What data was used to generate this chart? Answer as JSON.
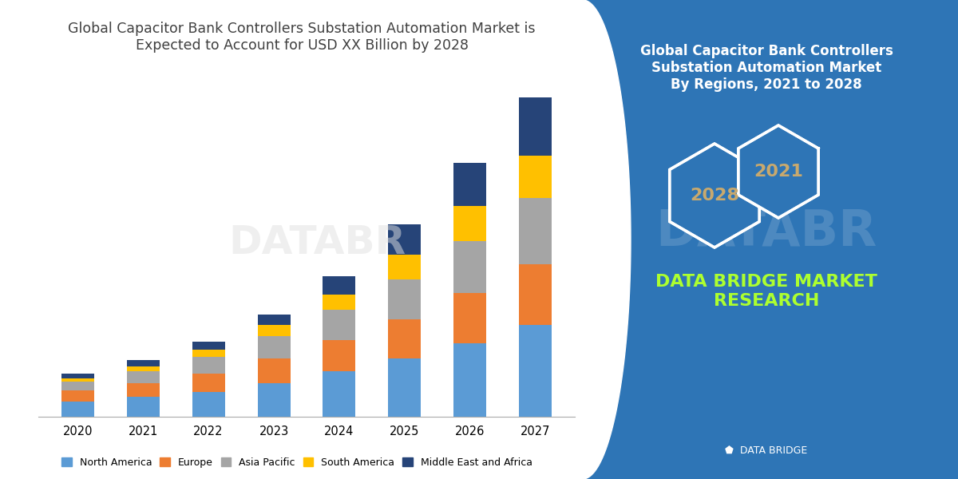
{
  "title_left": "Global Capacitor Bank Controllers Substation Automation Market is\nExpected to Account for USD XX Billion by 2028",
  "title_right": "Global Capacitor Bank Controllers\nSubstation Automation Market\nBy Regions, 2021 to 2028",
  "brand_text": "DATA BRIDGE MARKET\nRESEARCH",
  "years": [
    "2020",
    "2021",
    "2022",
    "2023",
    "2024",
    "2025",
    "2026",
    "2027"
  ],
  "regions": [
    "North America",
    "Europe",
    "Asia Pacific",
    "South America",
    "Middle East and Africa"
  ],
  "colors": [
    "#5B9BD5",
    "#ED7D31",
    "#A5A5A5",
    "#FFC000",
    "#264478"
  ],
  "data": {
    "North America": [
      1.0,
      1.3,
      1.6,
      2.2,
      3.0,
      3.8,
      4.8,
      6.0
    ],
    "Europe": [
      0.7,
      0.9,
      1.2,
      1.6,
      2.0,
      2.6,
      3.3,
      4.0
    ],
    "Asia Pacific": [
      0.6,
      0.8,
      1.1,
      1.5,
      2.0,
      2.6,
      3.4,
      4.3
    ],
    "South America": [
      0.2,
      0.3,
      0.5,
      0.7,
      1.0,
      1.6,
      2.3,
      2.8
    ],
    "Middle East and Africa": [
      0.3,
      0.4,
      0.5,
      0.7,
      1.2,
      2.0,
      2.8,
      3.8
    ]
  },
  "bg_color_left": "#FFFFFF",
  "bg_color_right": "#2E75B6",
  "hex_text_2021": "2021",
  "hex_text_2028": "2028",
  "hex_text_color": "#C8A96E",
  "brand_color": "#ADFF2F",
  "title_left_color": "#404040",
  "title_right_color": "#FFFFFF",
  "title_fontsize": 12.5,
  "legend_fontsize": 9,
  "bar_width": 0.5
}
